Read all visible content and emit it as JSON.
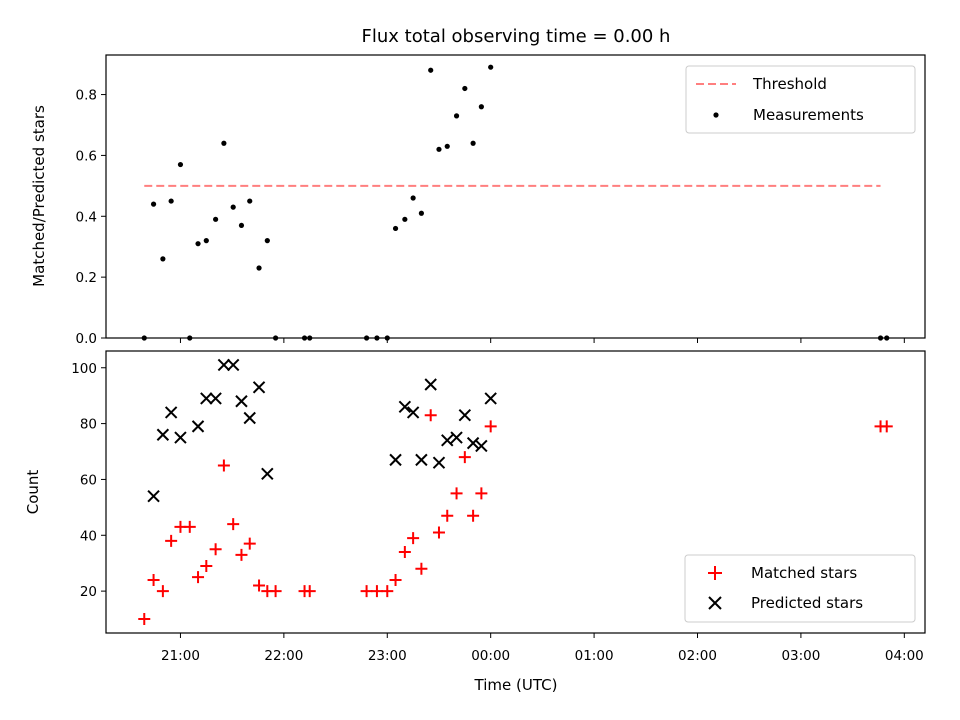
{
  "chart_data": [
    {
      "type": "scatter",
      "title": "Flux total observing time = 0.00 h",
      "xlabel": "",
      "ylabel": "Matched/Predicted stars",
      "x_unit": "hours (UTC, continuing past midnight)",
      "xlim": [
        20.28,
        28.2
      ],
      "ylim": [
        0,
        0.93
      ],
      "x_ticks": [
        21,
        22,
        23,
        24,
        25,
        26,
        27,
        28
      ],
      "y_ticks": [
        0.0,
        0.2,
        0.4,
        0.6,
        0.8
      ],
      "y_tick_labels": [
        "0.0",
        "0.2",
        "0.4",
        "0.6",
        "0.8"
      ],
      "legend_position": "top-right",
      "threshold": {
        "name": "Threshold",
        "value": 0.5,
        "x_range": [
          20.65,
          27.77
        ],
        "color": "#ff7f7f",
        "style": "dashed"
      },
      "series": [
        {
          "name": "Measurements",
          "color": "#000000",
          "marker": "dot",
          "points": [
            [
              20.65,
              0.0
            ],
            [
              20.74,
              0.44
            ],
            [
              20.83,
              0.26
            ],
            [
              20.91,
              0.45
            ],
            [
              21.0,
              0.57
            ],
            [
              21.09,
              0.0
            ],
            [
              21.17,
              0.31
            ],
            [
              21.25,
              0.32
            ],
            [
              21.34,
              0.39
            ],
            [
              21.42,
              0.64
            ],
            [
              21.51,
              0.43
            ],
            [
              21.59,
              0.37
            ],
            [
              21.67,
              0.45
            ],
            [
              21.76,
              0.23
            ],
            [
              21.84,
              0.32
            ],
            [
              21.92,
              0.0
            ],
            [
              22.2,
              0.0
            ],
            [
              22.25,
              0.0
            ],
            [
              22.8,
              0.0
            ],
            [
              22.9,
              0.0
            ],
            [
              23.0,
              0.0
            ],
            [
              23.08,
              0.36
            ],
            [
              23.17,
              0.39
            ],
            [
              23.25,
              0.46
            ],
            [
              23.33,
              0.41
            ],
            [
              23.42,
              0.88
            ],
            [
              23.5,
              0.62
            ],
            [
              23.58,
              0.63
            ],
            [
              23.67,
              0.73
            ],
            [
              23.75,
              0.82
            ],
            [
              23.83,
              0.64
            ],
            [
              23.91,
              0.76
            ],
            [
              24.0,
              0.89
            ],
            [
              27.77,
              0.0
            ],
            [
              27.83,
              0.0
            ]
          ]
        }
      ]
    },
    {
      "type": "scatter",
      "title": "",
      "xlabel": "Time (UTC)",
      "ylabel": "Count",
      "x_unit": "hours (UTC, continuing past midnight)",
      "xlim": [
        20.28,
        28.2
      ],
      "ylim": [
        5,
        106
      ],
      "x_ticks": [
        21,
        22,
        23,
        24,
        25,
        26,
        27,
        28
      ],
      "x_tick_labels": [
        "21:00",
        "22:00",
        "23:00",
        "00:00",
        "01:00",
        "02:00",
        "03:00",
        "04:00"
      ],
      "y_ticks": [
        20,
        40,
        60,
        80,
        100
      ],
      "y_tick_labels": [
        "20",
        "40",
        "60",
        "80",
        "100"
      ],
      "legend_position": "bottom-right",
      "series": [
        {
          "name": "Matched stars",
          "color": "#ff0000",
          "marker": "plus",
          "points": [
            [
              20.65,
              10
            ],
            [
              20.74,
              24
            ],
            [
              20.83,
              20
            ],
            [
              20.91,
              38
            ],
            [
              21.0,
              43
            ],
            [
              21.09,
              43
            ],
            [
              21.17,
              25
            ],
            [
              21.25,
              29
            ],
            [
              21.34,
              35
            ],
            [
              21.42,
              65
            ],
            [
              21.51,
              44
            ],
            [
              21.59,
              33
            ],
            [
              21.67,
              37
            ],
            [
              21.76,
              22
            ],
            [
              21.84,
              20
            ],
            [
              21.92,
              20
            ],
            [
              22.2,
              20
            ],
            [
              22.25,
              20
            ],
            [
              22.8,
              20
            ],
            [
              22.9,
              20
            ],
            [
              23.0,
              20
            ],
            [
              23.08,
              24
            ],
            [
              23.17,
              34
            ],
            [
              23.25,
              39
            ],
            [
              23.33,
              28
            ],
            [
              23.42,
              83
            ],
            [
              23.5,
              41
            ],
            [
              23.58,
              47
            ],
            [
              23.67,
              55
            ],
            [
              23.75,
              68
            ],
            [
              23.83,
              47
            ],
            [
              23.91,
              55
            ],
            [
              24.0,
              79
            ],
            [
              27.77,
              79
            ],
            [
              27.83,
              79
            ]
          ]
        },
        {
          "name": "Predicted stars",
          "color": "#000000",
          "marker": "x",
          "points": [
            [
              20.74,
              54
            ],
            [
              20.83,
              76
            ],
            [
              20.91,
              84
            ],
            [
              21.0,
              75
            ],
            [
              21.17,
              79
            ],
            [
              21.25,
              89
            ],
            [
              21.34,
              89
            ],
            [
              21.42,
              101
            ],
            [
              21.51,
              101
            ],
            [
              21.59,
              88
            ],
            [
              21.67,
              82
            ],
            [
              21.76,
              93
            ],
            [
              21.84,
              62
            ],
            [
              23.08,
              67
            ],
            [
              23.17,
              86
            ],
            [
              23.25,
              84
            ],
            [
              23.33,
              67
            ],
            [
              23.42,
              94
            ],
            [
              23.5,
              66
            ],
            [
              23.58,
              74
            ],
            [
              23.67,
              75
            ],
            [
              23.75,
              83
            ],
            [
              23.83,
              73
            ],
            [
              23.91,
              72
            ],
            [
              24.0,
              89
            ]
          ]
        }
      ]
    }
  ]
}
